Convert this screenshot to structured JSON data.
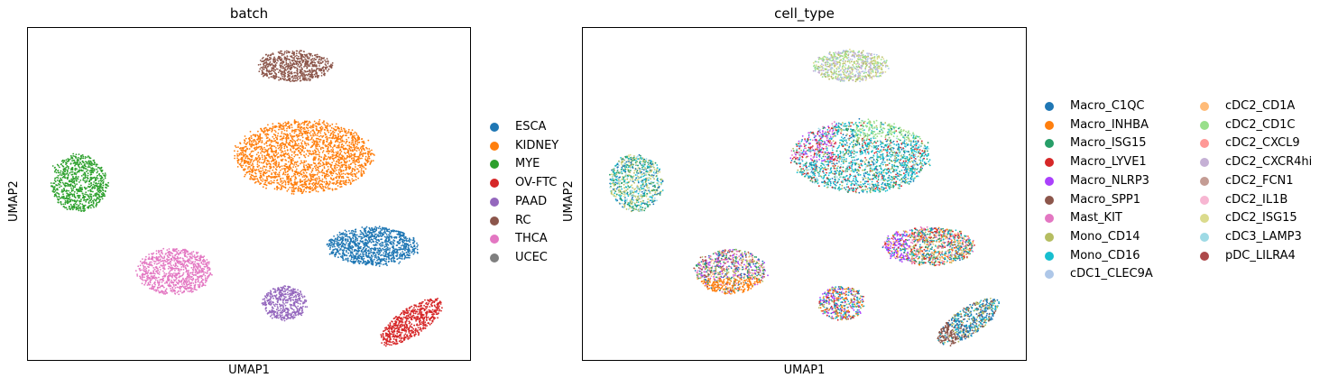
{
  "chart_data": [
    {
      "type": "scatter",
      "title": "batch",
      "xlabel": "UMAP1",
      "ylabel": "UMAP2",
      "grid": false,
      "legend_position": "right",
      "categories": [
        {
          "name": "ESCA",
          "color": "#1f77b4"
        },
        {
          "name": "KIDNEY",
          "color": "#ff7f0e"
        },
        {
          "name": "MYE",
          "color": "#2ca02c"
        },
        {
          "name": "OV-FTC",
          "color": "#d62728"
        },
        {
          "name": "PAAD",
          "color": "#9467bd"
        },
        {
          "name": "RC",
          "color": "#8c564b"
        },
        {
          "name": "THCA",
          "color": "#e377c2"
        },
        {
          "name": "UCEC",
          "color": "#7f7f7f"
        }
      ]
    },
    {
      "type": "scatter",
      "title": "cell_type",
      "xlabel": "UMAP1",
      "ylabel": "UMAP2",
      "grid": false,
      "legend_position": "right",
      "categories": [
        {
          "name": "Macro_C1QC",
          "color": "#1f77b4"
        },
        {
          "name": "Macro_INHBA",
          "color": "#ff7f0e"
        },
        {
          "name": "Macro_ISG15",
          "color": "#279e68"
        },
        {
          "name": "Macro_LYVE1",
          "color": "#d62728"
        },
        {
          "name": "Macro_NLRP3",
          "color": "#aa40fc"
        },
        {
          "name": "Macro_SPP1",
          "color": "#8c564b"
        },
        {
          "name": "Mast_KIT",
          "color": "#e377c2"
        },
        {
          "name": "Mono_CD14",
          "color": "#b5bd61"
        },
        {
          "name": "Mono_CD16",
          "color": "#17becf"
        },
        {
          "name": "cDC1_CLEC9A",
          "color": "#aec7e8"
        },
        {
          "name": "cDC2_CD1A",
          "color": "#ffbb78"
        },
        {
          "name": "cDC2_CD1C",
          "color": "#98df8a"
        },
        {
          "name": "cDC2_CXCL9",
          "color": "#ff9896"
        },
        {
          "name": "cDC2_CXCR4hi",
          "color": "#c5b0d5"
        },
        {
          "name": "cDC2_FCN1",
          "color": "#c49c94"
        },
        {
          "name": "cDC2_IL1B",
          "color": "#f7b6d2"
        },
        {
          "name": "cDC2_ISG15",
          "color": "#dbdb8d"
        },
        {
          "name": "cDC3_LAMP3",
          "color": "#9edae5"
        },
        {
          "name": "pDC_LILRA4",
          "color": "#ad494a"
        }
      ]
    }
  ]
}
